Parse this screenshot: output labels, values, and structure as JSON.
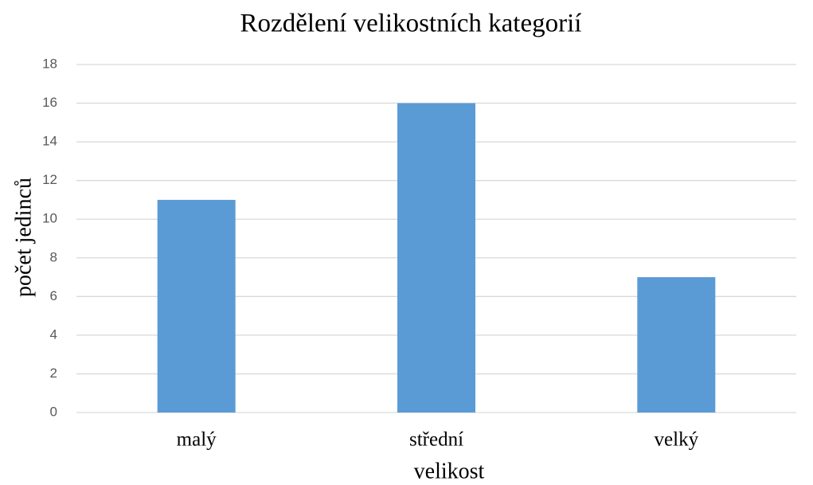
{
  "chart_data": {
    "type": "bar",
    "title": "Rozdělení velikostních kategorií",
    "x_label": "velikost",
    "y_label": "počet jedinců",
    "categories": [
      "malý",
      "střední",
      "velký"
    ],
    "values": [
      11,
      16,
      7
    ],
    "color": "#5b9bd5",
    "ylim": [
      0,
      18
    ],
    "yticks": [
      0,
      2,
      4,
      6,
      8,
      10,
      12,
      14,
      16,
      18
    ],
    "grid": true
  }
}
